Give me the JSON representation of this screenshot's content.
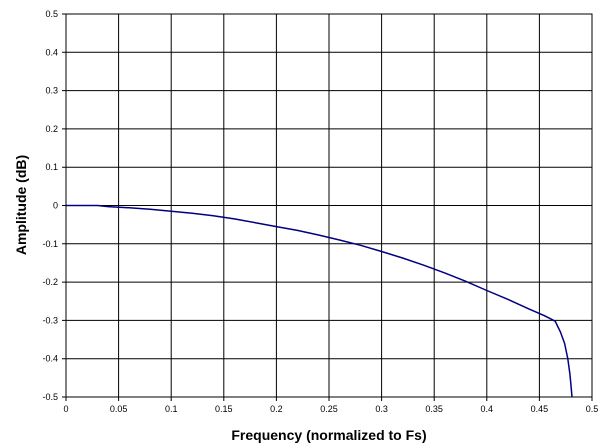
{
  "chart_data": {
    "type": "line",
    "xlabel": "Frequency (normalized to Fs)",
    "ylabel": "Amplitude (dB)",
    "xlim": [
      0,
      0.5
    ],
    "ylim": [
      -0.5,
      0.5
    ],
    "x_ticks": [
      0,
      0.05,
      0.1,
      0.15,
      0.2,
      0.25,
      0.3,
      0.35,
      0.4,
      0.45,
      0.5
    ],
    "y_ticks": [
      -0.5,
      -0.4,
      -0.3,
      -0.2,
      -0.1,
      0,
      0.1,
      0.2,
      0.3,
      0.4,
      0.5
    ],
    "x_tick_labels": [
      "0",
      "0.05",
      "0.1",
      "0.15",
      "0.2",
      "0.25",
      "0.3",
      "0.35",
      "0.4",
      "0.45",
      "0.5"
    ],
    "y_tick_labels": [
      "-0.5",
      "-0.4",
      "-0.3",
      "-0.2",
      "-0.1",
      "0",
      "0.1",
      "0.2",
      "0.3",
      "0.4",
      "0.5"
    ],
    "grid": true,
    "legend": "none",
    "line_color": "#000080",
    "series": [
      {
        "x": [
          0,
          0.03,
          0.04,
          0.06,
          0.08,
          0.1,
          0.12,
          0.14,
          0.16,
          0.18,
          0.2,
          0.22,
          0.24,
          0.26,
          0.28,
          0.3,
          0.32,
          0.34,
          0.36,
          0.38,
          0.4,
          0.42,
          0.44,
          0.455,
          0.465,
          0.47,
          0.474,
          0.477,
          0.479,
          0.48,
          0.481
        ],
        "y": [
          0,
          0,
          -0.003,
          -0.006,
          -0.01,
          -0.015,
          -0.02,
          -0.027,
          -0.035,
          -0.045,
          -0.055,
          -0.065,
          -0.077,
          -0.09,
          -0.104,
          -0.12,
          -0.137,
          -0.156,
          -0.176,
          -0.198,
          -0.222,
          -0.245,
          -0.27,
          -0.288,
          -0.302,
          -0.33,
          -0.36,
          -0.4,
          -0.44,
          -0.47,
          -0.5
        ]
      }
    ]
  }
}
